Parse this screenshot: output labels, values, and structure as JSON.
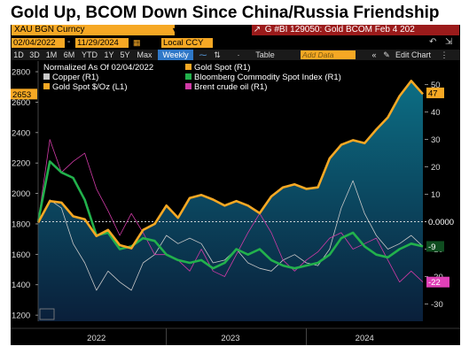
{
  "page_title": "Gold Up, BCOM Down Since China/Russia Friendship",
  "terminal": {
    "security": "XAU BGN Curncy",
    "header_right": "G #BI 129050: Gold BCOM Feb 4 202",
    "start_date": "02/04/2022",
    "end_date": "11/29/2024",
    "currency": "Local CCY",
    "toolbar": [
      "1D",
      "3D",
      "1M",
      "6M",
      "YTD",
      "1Y",
      "5Y",
      "Max",
      "Weekly",
      "Table"
    ],
    "add_data_placeholder": "Add Data",
    "edit_chart": "Edit Chart",
    "normalized_note": "Normalized As Of 02/04/2022"
  },
  "colors": {
    "gold": "#f6a824",
    "bcom": "#22b14c",
    "copper": "#c8c8c8",
    "brent": "#d03aa6",
    "background": "#000000",
    "area_top": "#0c6e84",
    "area_bottom": "#0a1f3a",
    "gold_tag": "#f6a824",
    "brent_tag": "#e040b8"
  },
  "icons": [
    "settings-icon",
    "export-icon",
    "chart-type-icon",
    "collapse-icon"
  ],
  "chart_data": {
    "type": "line",
    "x": [
      "2022-02",
      "2022-03",
      "2022-04",
      "2022-05",
      "2022-06",
      "2022-07",
      "2022-08",
      "2022-09",
      "2022-10",
      "2022-11",
      "2022-12",
      "2023-01",
      "2023-02",
      "2023-03",
      "2023-04",
      "2023-05",
      "2023-06",
      "2023-07",
      "2023-08",
      "2023-09",
      "2023-10",
      "2023-11",
      "2023-12",
      "2024-01",
      "2024-02",
      "2024-03",
      "2024-04",
      "2024-05",
      "2024-06",
      "2024-07",
      "2024-08",
      "2024-09",
      "2024-10",
      "2024-11"
    ],
    "x_ticks": [
      "2022",
      "2023",
      "2024"
    ],
    "series": [
      {
        "name": "Gold Spot",
        "axis": "L1",
        "unit": "$/Oz",
        "values": [
          1808,
          1950,
          1940,
          1850,
          1830,
          1720,
          1760,
          1660,
          1640,
          1760,
          1800,
          1920,
          1840,
          1970,
          1990,
          1960,
          1920,
          1950,
          1920,
          1870,
          1980,
          2040,
          2060,
          2030,
          2040,
          2230,
          2320,
          2350,
          2330,
          2420,
          2500,
          2640,
          2740,
          2653
        ]
      },
      {
        "name": "Gold Spot",
        "axis": "R1",
        "values": [
          0,
          8,
          7,
          2,
          1,
          -5,
          -3,
          -8,
          -9,
          -3,
          0,
          6,
          2,
          9,
          10,
          8,
          6,
          8,
          6,
          3,
          9,
          13,
          14,
          12,
          13,
          23,
          28,
          30,
          29,
          34,
          38,
          46,
          52,
          47
        ]
      },
      {
        "name": "Copper",
        "axis": "R1",
        "values": [
          0,
          8,
          5,
          -8,
          -15,
          -25,
          -18,
          -22,
          -25,
          -15,
          -12,
          -5,
          -8,
          -6,
          -8,
          -15,
          -14,
          -10,
          -15,
          -17,
          -18,
          -14,
          -12,
          -15,
          -16,
          -10,
          5,
          15,
          3,
          -5,
          -10,
          -8,
          -5,
          -9
        ]
      },
      {
        "name": "Bloomberg Commodity Spot Index",
        "axis": "R1",
        "values": [
          0,
          22,
          18,
          16,
          8,
          -5,
          -4,
          -10,
          -9,
          -6,
          -7,
          -12,
          -14,
          -15,
          -14,
          -17,
          -15,
          -10,
          -12,
          -10,
          -14,
          -16,
          -17,
          -16,
          -15,
          -12,
          -6,
          -4,
          -9,
          -12,
          -13,
          -10,
          -8,
          -9
        ]
      },
      {
        "name": "Brent crude oil",
        "axis": "R1",
        "values": [
          0,
          30,
          18,
          22,
          25,
          12,
          4,
          -5,
          3,
          -4,
          -12,
          -12,
          -14,
          -18,
          -10,
          -18,
          -20,
          -12,
          -4,
          3,
          -4,
          -14,
          -18,
          -14,
          -11,
          -6,
          -4,
          -10,
          -8,
          -6,
          -14,
          -22,
          -18,
          -22
        ]
      }
    ],
    "y_left": {
      "label": "Gold Spot $/Oz (L1)",
      "ticks": [
        1200,
        1400,
        1600,
        1800,
        2000,
        2200,
        2400,
        2600,
        2800
      ],
      "range": [
        1160,
        2870
      ]
    },
    "y_right": {
      "ticks": [
        -30,
        -20,
        -10,
        0,
        10,
        20,
        30,
        40,
        50
      ],
      "range": [
        -36.3,
        58.6
      ],
      "reference": "0.0000"
    },
    "last_value_tags": {
      "gold_left": "2653",
      "gold_right": "47",
      "bcom_right": "-9",
      "brent_right": "-22",
      "zero_line": "0.0000"
    },
    "legend": [
      "Normalized As Of 02/04/2022",
      "Gold Spot (R1)",
      "Copper (R1)",
      "Bloomberg Commodity Spot Index (R1)",
      "Gold Spot $/Oz (L1)",
      "Brent crude oil (R1)"
    ],
    "grid": false,
    "legend_position": "top-left"
  }
}
